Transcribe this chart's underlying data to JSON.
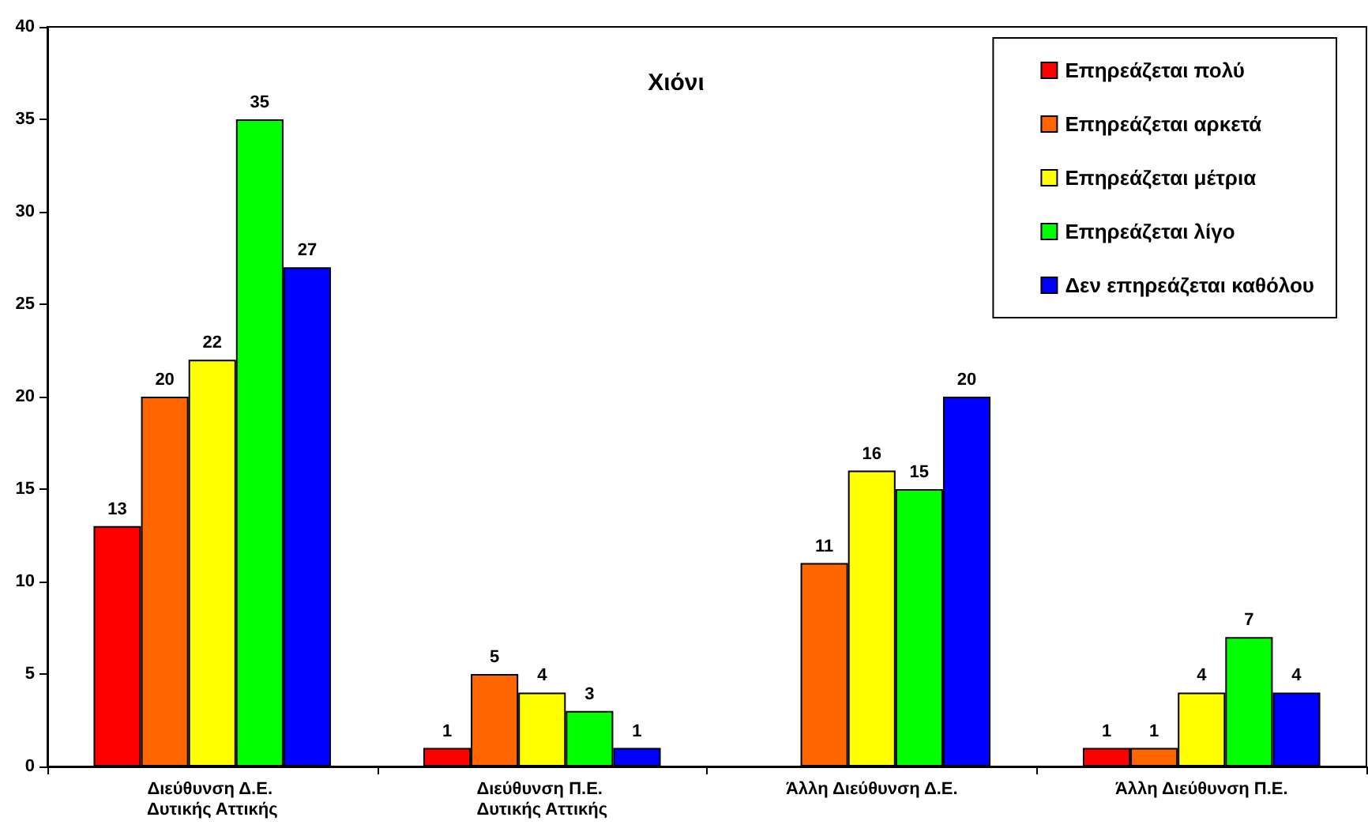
{
  "chart_data": {
    "type": "bar",
    "title": "Χιόνι",
    "categories": [
      "Διεύθυνση Δ.Ε. Δυτικής Αττικής",
      "Διεύθυνση Π.Ε. Δυτικής Αττικής",
      "Άλλη Διεύθυνση Δ.Ε.",
      "Άλλη Διεύθυνση Π.Ε."
    ],
    "series": [
      {
        "name": "Επηρεάζεται πολύ",
        "color": "#ff0000",
        "values": [
          13,
          1,
          null,
          1
        ]
      },
      {
        "name": "Επηρεάζεται αρκετά",
        "color": "#ff6600",
        "values": [
          20,
          5,
          11,
          1
        ]
      },
      {
        "name": "Επηρεάζεται μέτρια",
        "color": "#ffff00",
        "values": [
          22,
          4,
          16,
          4
        ]
      },
      {
        "name": "Επηρεάζεται λίγο",
        "color": "#00ff00",
        "values": [
          35,
          3,
          15,
          7
        ]
      },
      {
        "name": "Δεν επηρεάζεται καθόλου",
        "color": "#0000ff",
        "values": [
          27,
          1,
          20,
          4
        ]
      }
    ],
    "ylim": [
      0,
      40
    ],
    "yticks": [
      0,
      5,
      10,
      15,
      20,
      25,
      30,
      35,
      40
    ],
    "grid": false,
    "legend": "top right",
    "data_labels": true
  }
}
